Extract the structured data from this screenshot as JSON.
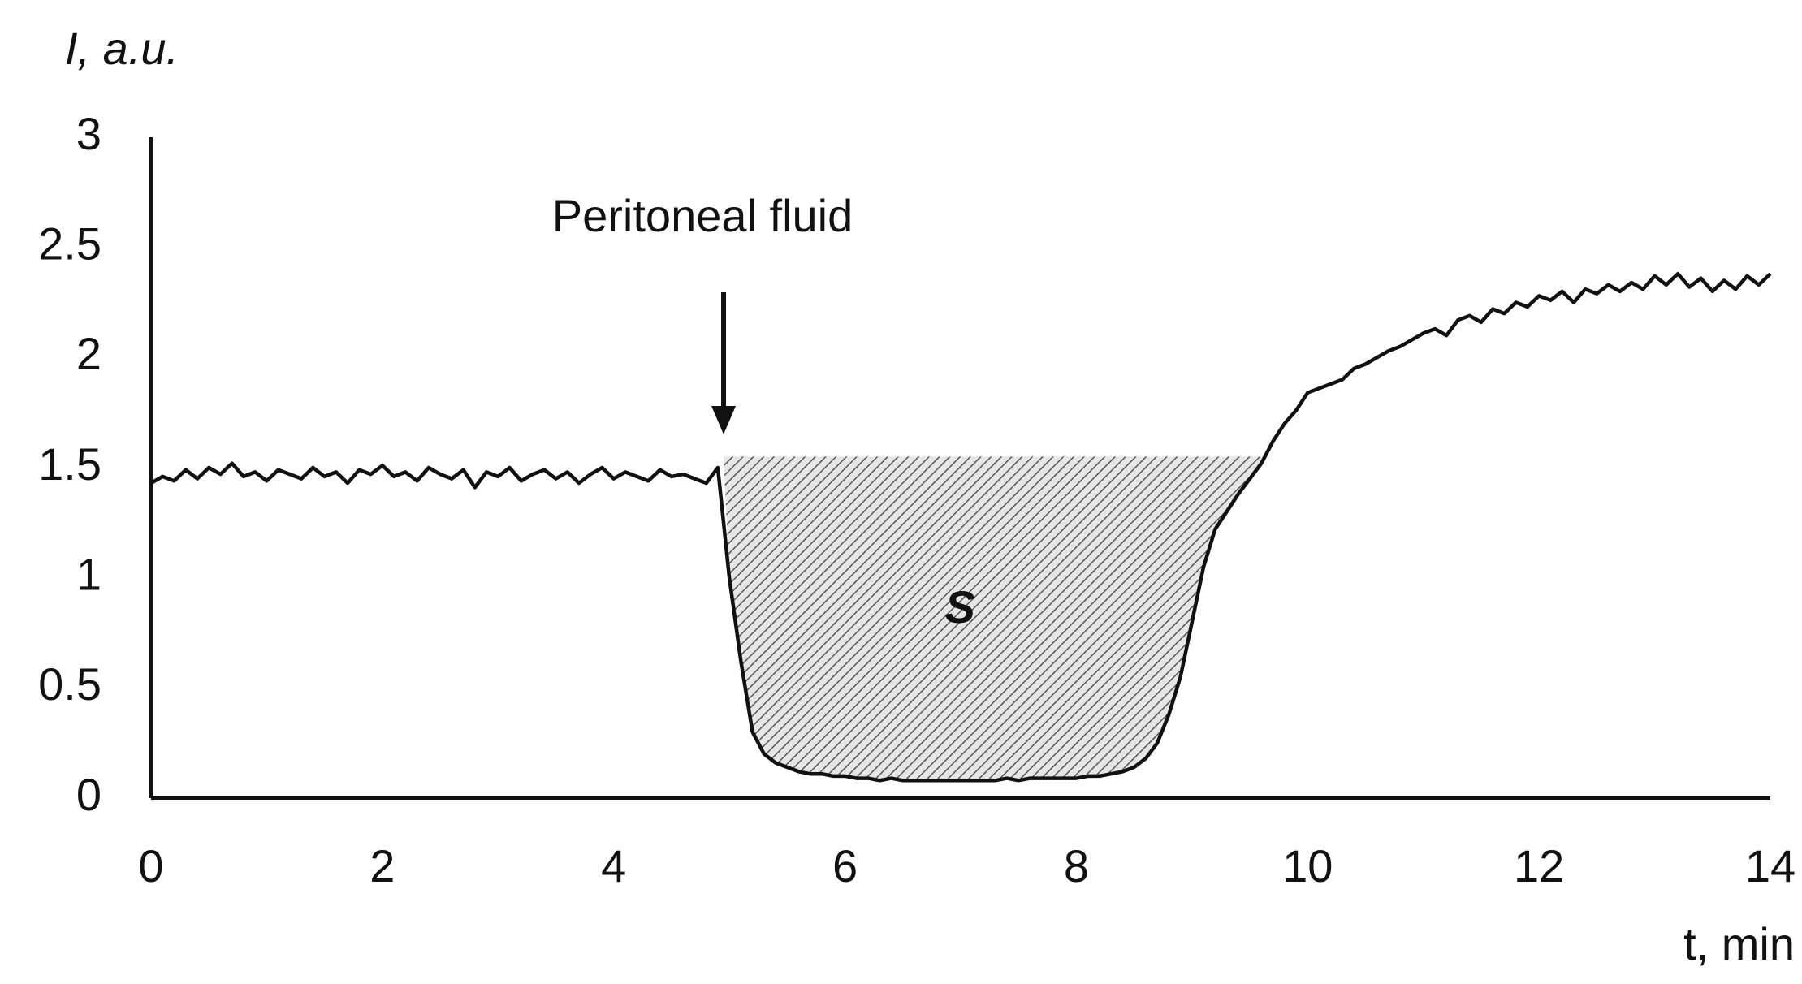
{
  "chart_data": {
    "type": "line",
    "y_label": "I, a.u.",
    "x_label": "t, min",
    "x": [
      0,
      0.1,
      0.2,
      0.3,
      0.4,
      0.5,
      0.6,
      0.7,
      0.8,
      0.9,
      1,
      1.1,
      1.2,
      1.3,
      1.4,
      1.5,
      1.6,
      1.7,
      1.8,
      1.9,
      2,
      2.1,
      2.2,
      2.3,
      2.4,
      2.5,
      2.6,
      2.7,
      2.8,
      2.9,
      3,
      3.1,
      3.2,
      3.3,
      3.4,
      3.5,
      3.6,
      3.7,
      3.8,
      3.9,
      4,
      4.1,
      4.2,
      4.3,
      4.4,
      4.5,
      4.6,
      4.7,
      4.8,
      4.9,
      5,
      5.1,
      5.2,
      5.3,
      5.4,
      5.5,
      5.6,
      5.7,
      5.8,
      5.9,
      6,
      6.1,
      6.2,
      6.3,
      6.4,
      6.5,
      6.6,
      6.7,
      6.8,
      6.9,
      7,
      7.1,
      7.2,
      7.3,
      7.4,
      7.5,
      7.6,
      7.7,
      7.8,
      7.9,
      8,
      8.1,
      8.2,
      8.3,
      8.4,
      8.5,
      8.6,
      8.7,
      8.8,
      8.9,
      9,
      9.1,
      9.2,
      9.3,
      9.4,
      9.5,
      9.6,
      9.7,
      9.8,
      9.9,
      10,
      10.1,
      10.2,
      10.3,
      10.4,
      10.5,
      10.6,
      10.7,
      10.8,
      10.9,
      11,
      11.1,
      11.2,
      11.3,
      11.4,
      11.5,
      11.6,
      11.7,
      11.8,
      11.9,
      12,
      12.1,
      12.2,
      12.3,
      12.4,
      12.5,
      12.6,
      12.7,
      12.8,
      12.9,
      13,
      13.1,
      13.2,
      13.3,
      13.4,
      13.5,
      13.6,
      13.7,
      13.8,
      13.9,
      14
    ],
    "series": [
      {
        "color": "#111111",
        "values": [
          1.43,
          1.46,
          1.44,
          1.49,
          1.45,
          1.5,
          1.47,
          1.52,
          1.46,
          1.48,
          1.44,
          1.49,
          1.47,
          1.45,
          1.5,
          1.46,
          1.48,
          1.43,
          1.49,
          1.47,
          1.51,
          1.46,
          1.48,
          1.44,
          1.5,
          1.47,
          1.45,
          1.49,
          1.41,
          1.48,
          1.46,
          1.5,
          1.44,
          1.47,
          1.49,
          1.45,
          1.48,
          1.43,
          1.47,
          1.5,
          1.45,
          1.48,
          1.46,
          1.44,
          1.49,
          1.46,
          1.47,
          1.45,
          1.43,
          1.5,
          1.0,
          0.62,
          0.3,
          0.2,
          0.16,
          0.14,
          0.12,
          0.11,
          0.11,
          0.1,
          0.1,
          0.09,
          0.09,
          0.08,
          0.09,
          0.08,
          0.08,
          0.08,
          0.08,
          0.08,
          0.08,
          0.08,
          0.08,
          0.08,
          0.09,
          0.08,
          0.09,
          0.09,
          0.09,
          0.09,
          0.09,
          0.1,
          0.1,
          0.11,
          0.12,
          0.14,
          0.18,
          0.25,
          0.38,
          0.55,
          0.8,
          1.05,
          1.22,
          1.3,
          1.38,
          1.45,
          1.52,
          1.62,
          1.7,
          1.76,
          1.84,
          1.86,
          1.88,
          1.9,
          1.95,
          1.97,
          2.0,
          2.03,
          2.05,
          2.08,
          2.11,
          2.13,
          2.1,
          2.17,
          2.19,
          2.16,
          2.22,
          2.2,
          2.25,
          2.23,
          2.28,
          2.26,
          2.3,
          2.25,
          2.31,
          2.29,
          2.33,
          2.3,
          2.34,
          2.31,
          2.37,
          2.33,
          2.38,
          2.32,
          2.36,
          2.3,
          2.35,
          2.31,
          2.37,
          2.33,
          2.38
        ]
      }
    ],
    "xlim": [
      0,
      14
    ],
    "xticks": [
      0,
      2,
      4,
      6,
      8,
      10,
      12,
      14
    ],
    "ylim": [
      0,
      3
    ],
    "yticks": [
      0,
      {
        "value": 0.5,
        "label": "0.5"
      },
      1,
      {
        "value": 1.5,
        "label": "1.5"
      },
      2,
      {
        "value": 2.5,
        "label": "2.5"
      },
      3
    ],
    "grid": false,
    "annotation": {
      "text": "Peritoneal fluid",
      "x": 4.95
    },
    "shaded_region": {
      "label": "S",
      "x": [
        4.95,
        9.6
      ],
      "y": 1.55
    }
  }
}
